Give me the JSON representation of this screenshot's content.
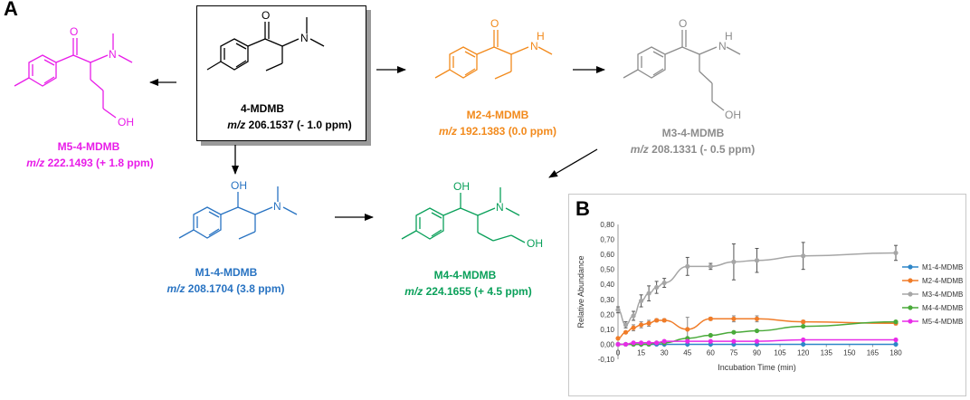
{
  "panels": {
    "a": "A",
    "b": "B"
  },
  "colors": {
    "parent": "#000000",
    "m1": "#2873c2",
    "m2": "#f28a1c",
    "m3": "#8c8c8c",
    "m4": "#0aa05a",
    "m5": "#e81ce8"
  },
  "atoms": {
    "O": "O",
    "N": "N",
    "OH": "OH",
    "NH": "H"
  },
  "molecules": {
    "parent": {
      "name": "4-MDMB",
      "mz_prefix": "m/z",
      "mz_value": " 206.1537 (- 1.0 ppm)"
    },
    "m2": {
      "name": "M2-4-MDMB",
      "mz_prefix": "m/z",
      "mz_value": " 192.1383 (0.0 ppm)"
    },
    "m3": {
      "name": "M3-4-MDMB",
      "mz_prefix": "m/z",
      "mz_value": " 208.1331 (- 0.5 ppm)"
    },
    "m5": {
      "name": "M5-4-MDMB",
      "mz_prefix": "m/z",
      "mz_value": " 222.1493 (+ 1.8 ppm)"
    },
    "m1": {
      "name": "M1-4-MDMB",
      "mz_prefix": "m/z",
      "mz_value": " 208.1704 (3.8 ppm)"
    },
    "m4": {
      "name": "M4-4-MDMB",
      "mz_prefix": "m/z",
      "mz_value": " 224.1655 (+ 4.5 ppm)"
    }
  },
  "chart_data": {
    "type": "line",
    "xlabel": "Incubation Time (min)",
    "ylabel": "Relative Abundance",
    "x": [
      0,
      5,
      10,
      15,
      20,
      25,
      30,
      45,
      60,
      75,
      90,
      120,
      180
    ],
    "x_ticks": [
      "0",
      "15",
      "30",
      "45",
      "60",
      "75",
      "90",
      "105",
      "120",
      "135",
      "150",
      "165",
      "180"
    ],
    "y_ticks": [
      "0,80",
      "0,70",
      "0,60",
      "0,50",
      "0,40",
      "0,30",
      "0,20",
      "0,10",
      "0,00",
      "-0,10"
    ],
    "ylim": [
      -0.1,
      0.8
    ],
    "xlim": [
      0,
      180
    ],
    "legend_position": "right",
    "series": [
      {
        "name": "M1-4-MDMB",
        "color": "#2e86c8",
        "values": [
          0,
          0,
          0,
          0,
          0,
          0,
          0,
          0,
          0,
          0,
          0,
          0,
          0
        ]
      },
      {
        "name": "M2-4-MDMB",
        "color": "#f07c28",
        "values": [
          0.04,
          0.08,
          0.11,
          0.13,
          0.14,
          0.16,
          0.16,
          0.1,
          0.17,
          0.17,
          0.17,
          0.15,
          0.14
        ]
      },
      {
        "name": "M3-4-MDMB",
        "color": "#a6a6a6",
        "values": [
          0.23,
          0.13,
          0.19,
          0.29,
          0.34,
          0.38,
          0.41,
          0.52,
          0.52,
          0.55,
          0.56,
          0.59,
          0.61
        ]
      },
      {
        "name": "M4-4-MDMB",
        "color": "#4aaa3a",
        "values": [
          0,
          0,
          0,
          0,
          0,
          0.01,
          0.01,
          0.04,
          0.06,
          0.08,
          0.09,
          0.12,
          0.15
        ]
      },
      {
        "name": "M5-4-MDMB",
        "color": "#e82ce8",
        "values": [
          0,
          0,
          0.01,
          0.01,
          0.01,
          0.01,
          0.02,
          0.02,
          0.02,
          0.02,
          0.02,
          0.03,
          0.03
        ]
      }
    ],
    "error_bars_series": "M3-4-MDMB",
    "errors": [
      0.02,
      0.02,
      0.03,
      0.04,
      0.05,
      0.04,
      0.03,
      0.06,
      0.02,
      0.12,
      0.08,
      0.09,
      0.05
    ],
    "error_bars_m2": [
      0,
      0,
      0.02,
      0.02,
      0.02,
      0.01,
      0.01,
      0.08,
      0.01,
      0.02,
      0.02,
      0.01,
      0.01
    ]
  }
}
